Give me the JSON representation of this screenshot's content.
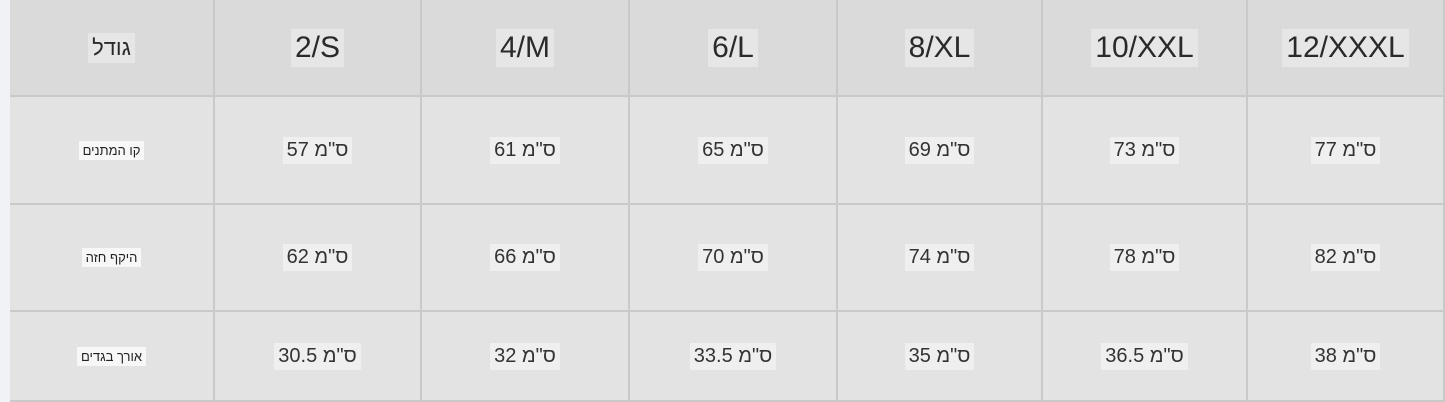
{
  "header": {
    "label": "גודל",
    "sizes": [
      "2/S",
      "4/M",
      "6/L",
      "8/XL",
      "10/XXL",
      "12/XXXL"
    ]
  },
  "rows": [
    {
      "label": "קו המתנים",
      "values": [
        "57 ס\"מ",
        "61 ס\"מ",
        "65 ס\"מ",
        "69 ס\"מ",
        "73 ס\"מ",
        "77 ס\"מ"
      ]
    },
    {
      "label": "היקף חזה",
      "values": [
        "62 ס\"מ",
        "66 ס\"מ",
        "70 ס\"מ",
        "74 ס\"מ",
        "78 ס\"מ",
        "82 ס\"מ"
      ]
    },
    {
      "label": "אורך בגדים",
      "values": [
        "30.5 ס\"מ",
        "32 ס\"מ",
        "33.5 ס\"מ",
        "35 ס\"מ",
        "36.5 ס\"מ",
        "38 ס\"מ"
      ]
    }
  ]
}
